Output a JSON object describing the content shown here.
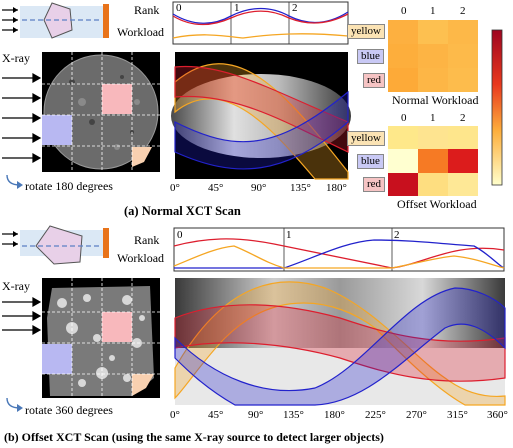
{
  "panel_a": {
    "caption": "(a) Normal XCT Scan",
    "rank_label": "Rank",
    "workload_label": "Workload",
    "xray_label": "X-ray",
    "rotate_label": "rotate 180 degrees",
    "rank_ticks": [
      "0",
      "1",
      "2"
    ],
    "angle_ticks": [
      "0°",
      "45°",
      "90°",
      "135°",
      "180°"
    ],
    "heatmap_normal": {
      "title": "Normal Workload",
      "rows": [
        "yellow",
        "blue",
        "red"
      ],
      "cols": [
        "0",
        "1",
        "2"
      ]
    },
    "heatmap_offset": {
      "title": "Offset Workload",
      "rows": [
        "yellow",
        "blue",
        "red"
      ],
      "cols": [
        "0",
        "1",
        "2"
      ]
    }
  },
  "panel_b": {
    "caption": "(b) Offset XCT Scan (using the same X-ray source to detect larger objects)",
    "rank_label": "Rank",
    "workload_label": "Workload",
    "xray_label": "X-ray",
    "rotate_label": "rotate 360 degrees",
    "rank_ticks": [
      "0",
      "1",
      "2"
    ],
    "angle_ticks": [
      "0°",
      "45°",
      "90°",
      "135°",
      "180°",
      "225°",
      "270°",
      "315°",
      "360°"
    ]
  },
  "colors": {
    "yellow": "#f5a623",
    "blue": "#2222cc",
    "red": "#dd1e2e",
    "heat_low": "#ffffcc",
    "heat_mid": "#fdae3c",
    "heat_high": "#b50a1e",
    "yellow_label_bg": "#fbe3b4",
    "blue_label_bg": "#c9c9f5",
    "red_label_bg": "#f6c4c4"
  }
}
